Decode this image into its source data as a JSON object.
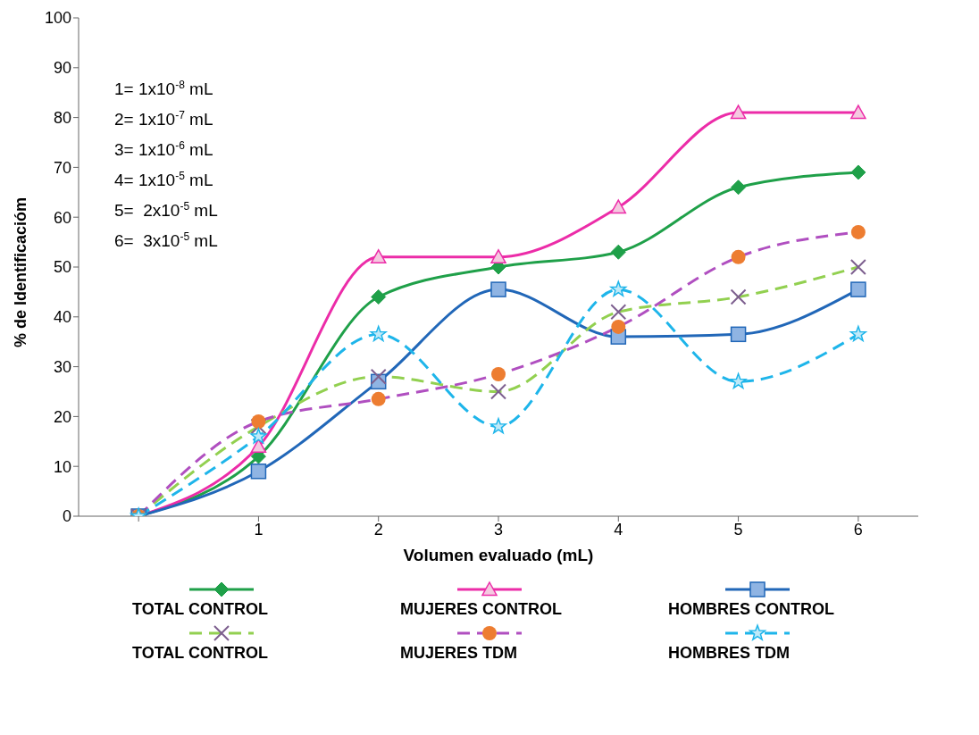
{
  "chart_data": {
    "type": "line",
    "xlabel": "Volumen evaluado (mL)",
    "ylabel": "% de Identificacióm",
    "categories": [
      null,
      "1",
      "2",
      "3",
      "4",
      "5",
      "6"
    ],
    "ylim": [
      0,
      100
    ],
    "yticks": [
      0,
      10,
      20,
      30,
      40,
      50,
      60,
      70,
      80,
      90,
      100
    ],
    "grid": false,
    "legend": "bottom",
    "annotations": [
      "1= 1x10$^{-8}$ mL",
      "2= 1x10$^{-7}$ mL",
      "3= 1x10$^{-6}$ mL",
      "4= 1x10$^{-5}$ mL",
      "5=  2x10$^{-5}$ mL",
      "6=  3x10$^{-5}$ mL"
    ],
    "series": [
      {
        "name": "TOTAL CONTROL",
        "color": "#1fa049",
        "marker": "diamond",
        "line_style": "solid",
        "values": [
          0,
          12,
          44,
          50,
          53,
          66,
          69
        ]
      },
      {
        "name": "MUJERES CONTROL",
        "color": "#ec2ca8",
        "marker": "triangle",
        "line_style": "solid",
        "values": [
          0,
          14,
          52,
          52,
          62,
          81,
          81
        ]
      },
      {
        "name": "HOMBRES CONTROL",
        "color": "#2167b8",
        "marker": "square",
        "line_style": "solid",
        "values": [
          0,
          9,
          27,
          45.5,
          36,
          36.5,
          45.5
        ]
      },
      {
        "name": "TOTAL CONTROL",
        "color": "#92d050",
        "marker": "cross",
        "line_style": "dashed",
        "values": [
          0,
          18,
          28,
          25,
          41,
          44,
          50
        ]
      },
      {
        "name": "MUJERES TDM",
        "color": "#b04fc0",
        "marker": "circle",
        "line_style": "dashed",
        "values": [
          0,
          19,
          23.5,
          28.5,
          38,
          52,
          57
        ]
      },
      {
        "name": "HOMBRES TDM",
        "color": "#1eb5ea",
        "marker": "star",
        "line_style": "dashed",
        "values": [
          0,
          16,
          36.5,
          18,
          45.5,
          27,
          36.5
        ]
      }
    ]
  }
}
